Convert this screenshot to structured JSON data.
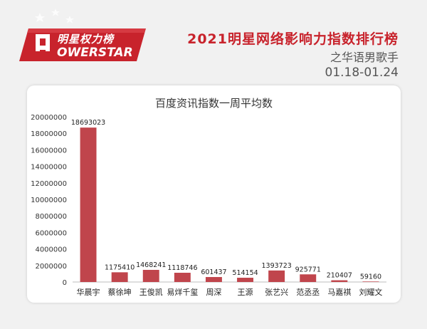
{
  "logo": {
    "cn": "明星权力榜",
    "en": "OWERSTAR"
  },
  "header": {
    "title": "2021明星网络影响力指数排行榜",
    "subtitle": "之华语男歌手",
    "date": "01.18-01.24"
  },
  "colors": {
    "bar": "#c0454c",
    "brand_red": "#c8232c"
  },
  "chart_data": {
    "type": "bar",
    "title": "百度资讯指数一周平均数",
    "xlabel": "",
    "ylabel": "",
    "categories": [
      "华晨宇",
      "蔡徐坤",
      "王俊凯",
      "易烊千玺",
      "周深",
      "王源",
      "张艺兴",
      "范丞丞",
      "马嘉祺",
      "刘耀文"
    ],
    "values": [
      18693023,
      1175410,
      1468241,
      1118746,
      601437,
      514154,
      1393723,
      925771,
      210407,
      59160
    ],
    "data_labels": [
      "18693023",
      "1175410",
      "1468241",
      "1118746",
      "601437",
      "514154",
      "1393723",
      "925771",
      "210407",
      "59160"
    ],
    "yticks": [
      "0",
      "2000000",
      "4000000",
      "6000000",
      "8000000",
      "10000000",
      "12000000",
      "14000000",
      "16000000",
      "18000000",
      "20000000"
    ],
    "ylim": [
      0,
      20000000
    ],
    "grid": false,
    "legend": "none"
  }
}
